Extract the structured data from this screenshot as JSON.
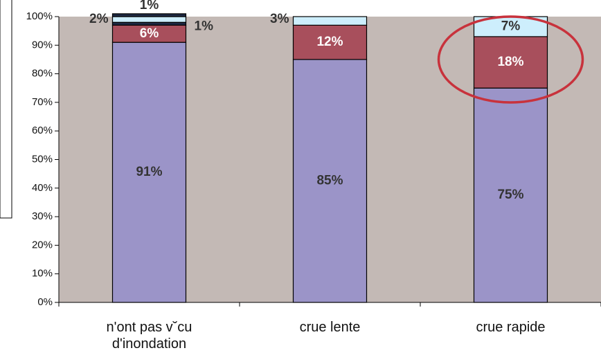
{
  "chart_data": {
    "type": "stacked_bar",
    "categories": [
      "n'ont pas v˘cu d'inondation",
      "crue lente",
      "crue rapide"
    ],
    "series": [
      {
        "color": "#9b94c8",
        "values": [
          91,
          85,
          75
        ],
        "value_labels": [
          "91%",
          "85%",
          "75%"
        ]
      },
      {
        "color": "#a84f5c",
        "values": [
          6,
          12,
          18
        ],
        "value_labels": [
          "6%",
          "12%",
          "18%"
        ]
      },
      {
        "color": "#1f2a44",
        "values": [
          1,
          null,
          null
        ],
        "value_labels": [
          "1%",
          null,
          null
        ]
      },
      {
        "color": "#cdeefc",
        "values": [
          2,
          3,
          7
        ],
        "value_labels": [
          "2%",
          "3%",
          "7%"
        ]
      },
      {
        "color": "#1f2a44",
        "values": [
          1,
          null,
          null
        ],
        "value_labels": [
          "1%",
          null,
          null
        ]
      }
    ],
    "ylim": [
      0,
      100
    ],
    "yticks": [
      {
        "value": 0,
        "label": "0%"
      },
      {
        "value": 10,
        "label": "10%"
      },
      {
        "value": 20,
        "label": "20%"
      },
      {
        "value": 30,
        "label": "30%"
      },
      {
        "value": 40,
        "label": "40%"
      },
      {
        "value": 50,
        "label": "50%"
      },
      {
        "value": 60,
        "label": "60%"
      },
      {
        "value": 70,
        "label": "70%"
      },
      {
        "value": 80,
        "label": "80%"
      },
      {
        "value": 90,
        "label": "90%"
      },
      {
        "value": 100,
        "label": "100%"
      }
    ]
  }
}
